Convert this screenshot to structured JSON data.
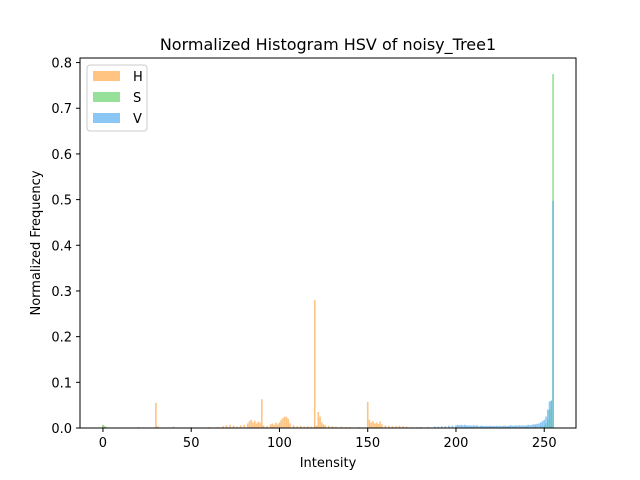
{
  "chart_data": {
    "type": "bar",
    "title": "Normalized Histogram HSV of noisy_Tree1",
    "xlabel": "Intensity",
    "ylabel": "Normalized Frequency",
    "xlim": [
      -13,
      268
    ],
    "ylim": [
      0,
      0.81
    ],
    "xticks": [
      0,
      50,
      100,
      150,
      200,
      250
    ],
    "yticks": [
      0.0,
      0.1,
      0.2,
      0.3,
      0.4,
      0.5,
      0.6,
      0.7,
      0.8
    ],
    "ytick_labels": [
      "0.0",
      "0.1",
      "0.2",
      "0.3",
      "0.4",
      "0.5",
      "0.6",
      "0.7",
      "0.8"
    ],
    "grid": false,
    "legend_position": "top-left",
    "series": [
      {
        "name": "H",
        "color": "#ffa94d",
        "opacity": 0.7,
        "points": [
          [
            0,
            0.006
          ],
          [
            1,
            0.003
          ],
          [
            20,
            0.002
          ],
          [
            30,
            0.055
          ],
          [
            31,
            0.004
          ],
          [
            40,
            0.003
          ],
          [
            50,
            0.002
          ],
          [
            60,
            0.002
          ],
          [
            65,
            0.002
          ],
          [
            68,
            0.004
          ],
          [
            70,
            0.006
          ],
          [
            72,
            0.007
          ],
          [
            74,
            0.005
          ],
          [
            76,
            0.003
          ],
          [
            78,
            0.006
          ],
          [
            80,
            0.007
          ],
          [
            82,
            0.01
          ],
          [
            83,
            0.015
          ],
          [
            84,
            0.018
          ],
          [
            85,
            0.012
          ],
          [
            86,
            0.016
          ],
          [
            87,
            0.01
          ],
          [
            88,
            0.014
          ],
          [
            89,
            0.012
          ],
          [
            90,
            0.063
          ],
          [
            91,
            0.006
          ],
          [
            93,
            0.004
          ],
          [
            95,
            0.008
          ],
          [
            96,
            0.01
          ],
          [
            97,
            0.007
          ],
          [
            98,
            0.012
          ],
          [
            99,
            0.008
          ],
          [
            100,
            0.012
          ],
          [
            101,
            0.018
          ],
          [
            102,
            0.022
          ],
          [
            103,
            0.025
          ],
          [
            104,
            0.024
          ],
          [
            105,
            0.02
          ],
          [
            106,
            0.01
          ],
          [
            108,
            0.006
          ],
          [
            110,
            0.004
          ],
          [
            112,
            0.005
          ],
          [
            114,
            0.003
          ],
          [
            116,
            0.004
          ],
          [
            118,
            0.003
          ],
          [
            120,
            0.28
          ],
          [
            121,
            0.005
          ],
          [
            122,
            0.035
          ],
          [
            123,
            0.025
          ],
          [
            124,
            0.012
          ],
          [
            125,
            0.008
          ],
          [
            126,
            0.006
          ],
          [
            128,
            0.005
          ],
          [
            130,
            0.004
          ],
          [
            132,
            0.003
          ],
          [
            135,
            0.003
          ],
          [
            138,
            0.002
          ],
          [
            140,
            0.002
          ],
          [
            145,
            0.002
          ],
          [
            150,
            0.057
          ],
          [
            151,
            0.018
          ],
          [
            152,
            0.012
          ],
          [
            153,
            0.015
          ],
          [
            154,
            0.01
          ],
          [
            155,
            0.012
          ],
          [
            156,
            0.009
          ],
          [
            157,
            0.014
          ],
          [
            158,
            0.008
          ],
          [
            160,
            0.006
          ],
          [
            162,
            0.005
          ],
          [
            164,
            0.004
          ],
          [
            166,
            0.004
          ],
          [
            168,
            0.005
          ],
          [
            170,
            0.004
          ],
          [
            172,
            0.003
          ],
          [
            175,
            0.002
          ],
          [
            178,
            0.002
          ]
        ]
      },
      {
        "name": "S",
        "color": "#69d36e",
        "opacity": 0.7,
        "points": [
          [
            0,
            0.007
          ],
          [
            1,
            0.004
          ],
          [
            2,
            0.002
          ],
          [
            200,
            0.002
          ],
          [
            210,
            0.002
          ],
          [
            220,
            0.002
          ],
          [
            230,
            0.002
          ],
          [
            240,
            0.002
          ],
          [
            245,
            0.003
          ],
          [
            248,
            0.004
          ],
          [
            250,
            0.006
          ],
          [
            251,
            0.01
          ],
          [
            252,
            0.02
          ],
          [
            253,
            0.04
          ],
          [
            254,
            0.06
          ],
          [
            255,
            0.775
          ]
        ]
      },
      {
        "name": "V",
        "color": "#5aaff0",
        "opacity": 0.7,
        "points": [
          [
            180,
            0.002
          ],
          [
            184,
            0.002
          ],
          [
            188,
            0.003
          ],
          [
            190,
            0.003
          ],
          [
            192,
            0.004
          ],
          [
            194,
            0.004
          ],
          [
            196,
            0.005
          ],
          [
            198,
            0.005
          ],
          [
            200,
            0.006
          ],
          [
            201,
            0.007
          ],
          [
            202,
            0.006
          ],
          [
            203,
            0.007
          ],
          [
            204,
            0.006
          ],
          [
            205,
            0.007
          ],
          [
            206,
            0.006
          ],
          [
            207,
            0.005
          ],
          [
            208,
            0.006
          ],
          [
            209,
            0.005
          ],
          [
            210,
            0.006
          ],
          [
            211,
            0.005
          ],
          [
            212,
            0.006
          ],
          [
            213,
            0.004
          ],
          [
            214,
            0.005
          ],
          [
            215,
            0.005
          ],
          [
            216,
            0.004
          ],
          [
            217,
            0.005
          ],
          [
            218,
            0.004
          ],
          [
            219,
            0.005
          ],
          [
            220,
            0.004
          ],
          [
            221,
            0.005
          ],
          [
            222,
            0.004
          ],
          [
            223,
            0.005
          ],
          [
            224,
            0.004
          ],
          [
            225,
            0.005
          ],
          [
            226,
            0.004
          ],
          [
            227,
            0.005
          ],
          [
            228,
            0.005
          ],
          [
            229,
            0.004
          ],
          [
            230,
            0.005
          ],
          [
            231,
            0.006
          ],
          [
            232,
            0.005
          ],
          [
            233,
            0.005
          ],
          [
            234,
            0.006
          ],
          [
            235,
            0.005
          ],
          [
            236,
            0.006
          ],
          [
            237,
            0.005
          ],
          [
            238,
            0.006
          ],
          [
            239,
            0.005
          ],
          [
            240,
            0.006
          ],
          [
            241,
            0.007
          ],
          [
            242,
            0.006
          ],
          [
            243,
            0.007
          ],
          [
            244,
            0.008
          ],
          [
            245,
            0.008
          ],
          [
            246,
            0.009
          ],
          [
            247,
            0.01
          ],
          [
            248,
            0.012
          ],
          [
            249,
            0.015
          ],
          [
            250,
            0.018
          ],
          [
            251,
            0.025
          ],
          [
            252,
            0.04
          ],
          [
            253,
            0.058
          ],
          [
            254,
            0.06
          ],
          [
            255,
            0.497
          ]
        ]
      }
    ]
  }
}
